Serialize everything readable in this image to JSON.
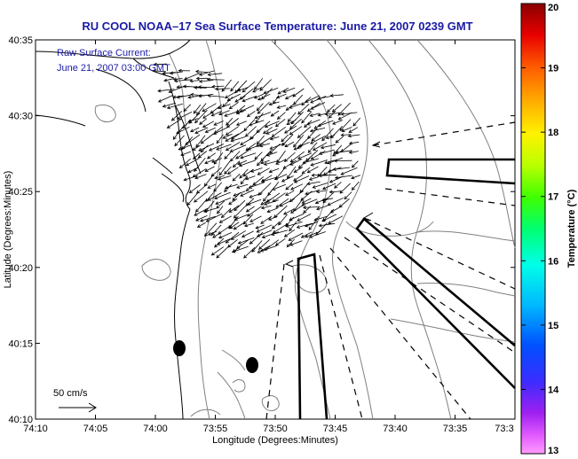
{
  "title": "RU COOL  NOAA–17  Sea Surface Temperature:  June 21, 2007 0239 GMT",
  "annotation": {
    "line1": "Raw Surface Current:",
    "line2": "June 21, 2007 03:00 GMT"
  },
  "scale_label": "50 cm/s",
  "axes": {
    "xlabel": "Longitude (Degrees:Minutes)",
    "ylabel": "Latitude (Degrees:Minutes)",
    "xticks": [
      "74:10",
      "74:05",
      "74:00",
      "73:55",
      "73:50",
      "73:45",
      "73:40",
      "73:35",
      "73:3"
    ],
    "yticks": [
      "40:35",
      "40:30",
      "40:25",
      "40:20",
      "40:15",
      "40:10"
    ]
  },
  "colorbar": {
    "label": "Temperature (°C)",
    "min": 13,
    "max": 20,
    "ticks": [
      "20",
      "19",
      "18",
      "17",
      "16",
      "15",
      "14",
      "13"
    ]
  },
  "colors": {
    "title": "#1a1aa6",
    "vectors": "#000000",
    "coastline": "#000000",
    "contours": "#808080"
  }
}
